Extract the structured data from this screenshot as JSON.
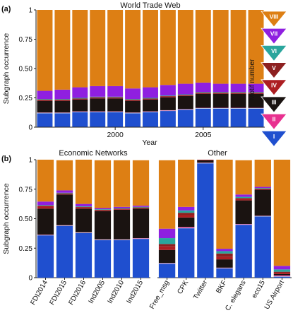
{
  "colors": {
    "motif_1": "#1f4fcf",
    "motif_2": "#e8308f",
    "motif_3": "#1a1311",
    "motif_4": "#ad1e22",
    "motif_5": "#8d2020",
    "motif_6": "#2aa69d",
    "motif_7": "#8f1fe0",
    "motif_8": "#dd7f14",
    "gap_line": "#cfd6e6",
    "axis": "#222222",
    "grid": "#999999"
  },
  "legend": {
    "title": "Motif number",
    "items": [
      {
        "label": "VIII",
        "color_key": "motif_8"
      },
      {
        "label": "VII",
        "color_key": "motif_7"
      },
      {
        "label": "VI",
        "color_key": "motif_6"
      },
      {
        "label": "V",
        "color_key": "motif_5"
      },
      {
        "label": "IV",
        "color_key": "motif_4"
      },
      {
        "label": "III",
        "color_key": "motif_3"
      },
      {
        "label": "II",
        "color_key": "motif_2"
      },
      {
        "label": "I",
        "color_key": "motif_1"
      }
    ]
  },
  "chart_data": [
    {
      "panel_label": "(a)",
      "type": "bar",
      "stacked": true,
      "title": "World Trade Web",
      "xlabel": "Year",
      "ylabel": "Subgraph occurrence",
      "ylim": [
        0,
        1
      ],
      "yticks": [
        "0",
        "0.25",
        "0.50",
        "0.75",
        "1"
      ],
      "ytick_values": [
        0,
        0.25,
        0.5,
        0.75,
        1
      ],
      "x": [
        1996,
        1997,
        1998,
        1999,
        2000,
        2001,
        2002,
        2003,
        2004,
        2005,
        2006,
        2007,
        2008
      ],
      "xticks": [
        "2000",
        "2005"
      ],
      "xtick_values": [
        2000,
        2005
      ],
      "series": [
        {
          "name": "I",
          "color_key": "motif_1",
          "values": [
            0.12,
            0.12,
            0.13,
            0.13,
            0.13,
            0.12,
            0.13,
            0.14,
            0.15,
            0.16,
            0.16,
            0.16,
            0.16
          ]
        },
        {
          "name": "II",
          "color_key": "motif_2",
          "values": [
            0.005,
            0.005,
            0.005,
            0.005,
            0.005,
            0.005,
            0.005,
            0.005,
            0.005,
            0.005,
            0.005,
            0.005,
            0.005
          ]
        },
        {
          "name": "III",
          "color_key": "motif_3",
          "values": [
            0.1,
            0.1,
            0.1,
            0.11,
            0.11,
            0.1,
            0.1,
            0.11,
            0.11,
            0.12,
            0.12,
            0.12,
            0.12
          ]
        },
        {
          "name": "IV",
          "color_key": "motif_4",
          "values": [
            0.005,
            0.005,
            0.005,
            0.005,
            0.005,
            0.005,
            0.005,
            0.005,
            0.005,
            0.005,
            0.005,
            0.005,
            0.005
          ]
        },
        {
          "name": "V",
          "color_key": "motif_5",
          "values": [
            0.005,
            0.005,
            0.005,
            0.005,
            0.005,
            0.005,
            0.005,
            0.005,
            0.005,
            0.005,
            0.005,
            0.005,
            0.005
          ]
        },
        {
          "name": "VI",
          "color_key": "motif_6",
          "values": [
            0.005,
            0.005,
            0.005,
            0.005,
            0.005,
            0.005,
            0.005,
            0.005,
            0.005,
            0.005,
            0.005,
            0.005,
            0.005
          ]
        },
        {
          "name": "VII",
          "color_key": "motif_7",
          "values": [
            0.07,
            0.08,
            0.09,
            0.09,
            0.09,
            0.09,
            0.09,
            0.09,
            0.09,
            0.08,
            0.07,
            0.07,
            0.07
          ]
        },
        {
          "name": "VIII",
          "color_key": "motif_8",
          "values": [
            0.69,
            0.685,
            0.665,
            0.655,
            0.655,
            0.675,
            0.665,
            0.645,
            0.635,
            0.625,
            0.635,
            0.635,
            0.635
          ]
        }
      ]
    },
    {
      "panel_label": "(b)",
      "type": "bar",
      "stacked": true,
      "group_titles": [
        "Economic Networks",
        "Other"
      ],
      "ylabel": "Subgraph occurrence",
      "ylim": [
        0,
        1
      ],
      "yticks": [
        "0",
        "0.25",
        "0.50",
        "0.75",
        "1"
      ],
      "ytick_values": [
        0,
        0.25,
        0.5,
        0.75,
        1
      ],
      "groups": [
        {
          "title": "Economic Networks",
          "categories": [
            "FDI2014",
            "FDI2015",
            "FDI2016",
            "Ind2005",
            "Ind2010",
            "Ind2015"
          ]
        },
        {
          "title": "Other",
          "categories": [
            "Free_msg",
            "CPK",
            "Twitter",
            "BKF",
            "C. elegans",
            "eco15",
            "US Airport"
          ]
        }
      ],
      "categories": [
        "FDI2014",
        "FDI2015",
        "FDI2016",
        "Ind2005",
        "Ind2010",
        "Ind2015",
        "Free_msg",
        "CPK",
        "Twitter",
        "BKF",
        "C. elegans",
        "eco15",
        "US Airport"
      ],
      "series": [
        {
          "name": "I",
          "color_key": "motif_1",
          "values": [
            0.36,
            0.44,
            0.38,
            0.32,
            0.32,
            0.33,
            0.12,
            0.42,
            0.97,
            0.08,
            0.45,
            0.52,
            0.01
          ]
        },
        {
          "name": "II",
          "color_key": "motif_2",
          "values": [
            0.005,
            0.005,
            0.005,
            0.005,
            0.005,
            0.005,
            0.005,
            0.01,
            0.005,
            0.005,
            0.005,
            0.005,
            0.01
          ]
        },
        {
          "name": "III",
          "color_key": "motif_3",
          "values": [
            0.22,
            0.26,
            0.2,
            0.24,
            0.25,
            0.25,
            0.11,
            0.08,
            0.02,
            0.07,
            0.2,
            0.22,
            0.01
          ]
        },
        {
          "name": "IV",
          "color_key": "motif_4",
          "values": [
            0.02,
            0.005,
            0.01,
            0.005,
            0.005,
            0.005,
            0.03,
            0.02,
            0.005,
            0.02,
            0.01,
            0.005,
            0.01
          ]
        },
        {
          "name": "V",
          "color_key": "motif_5",
          "values": [
            0.005,
            0.005,
            0.005,
            0.005,
            0.005,
            0.005,
            0.02,
            0.02,
            0.0,
            0.03,
            0.01,
            0.005,
            0.01
          ]
        },
        {
          "name": "VI",
          "color_key": "motif_6",
          "values": [
            0.005,
            0.005,
            0.005,
            0.005,
            0.005,
            0.005,
            0.05,
            0.02,
            0.0,
            0.02,
            0.01,
            0.005,
            0.02
          ]
        },
        {
          "name": "VII",
          "color_key": "motif_7",
          "values": [
            0.03,
            0.02,
            0.02,
            0.01,
            0.01,
            0.01,
            0.08,
            0.03,
            0.0,
            0.02,
            0.02,
            0.01,
            0.03
          ]
        },
        {
          "name": "VIII",
          "color_key": "motif_8",
          "values": [
            0.355,
            0.255,
            0.375,
            0.405,
            0.395,
            0.385,
            0.58,
            0.4,
            0.0,
            0.76,
            0.29,
            0.245,
            0.91
          ]
        }
      ]
    }
  ]
}
